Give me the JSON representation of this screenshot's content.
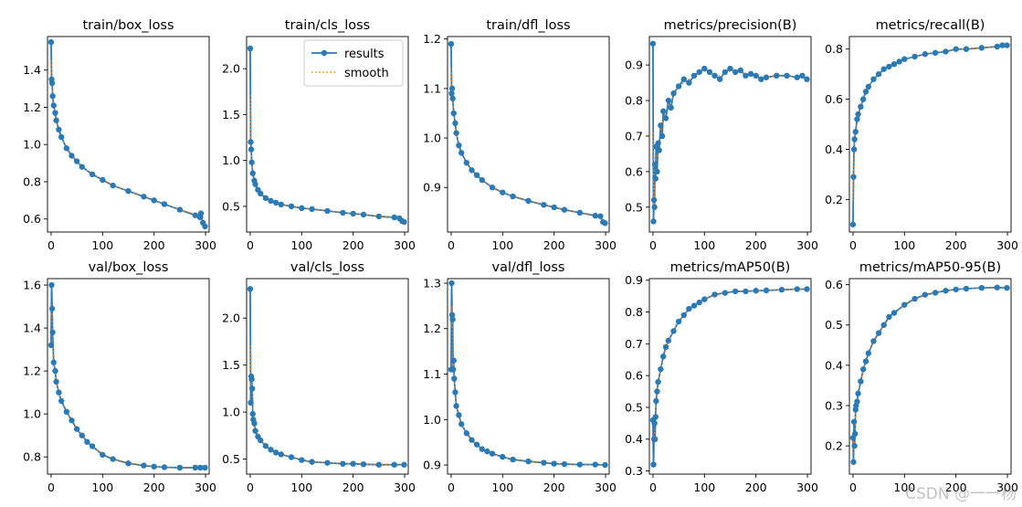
{
  "figure": {
    "watermark": "CSDN @一一杨"
  },
  "legend": {
    "results_label": "results",
    "smooth_label": "smooth"
  },
  "chart_data": [
    {
      "type": "line",
      "title": "train/box_loss",
      "xlim": [
        -7,
        307
      ],
      "ylim": [
        0.53,
        1.58
      ],
      "xticks": [
        0,
        100,
        200,
        300
      ],
      "yticks": [
        0.6,
        0.8,
        1.0,
        1.2,
        1.4
      ],
      "ytick_labels": [
        "0.6",
        "0.8",
        "1.0",
        "1.2",
        "1.4"
      ],
      "series": [
        {
          "name": "results",
          "x": [
            0,
            1,
            2,
            3,
            5,
            8,
            10,
            15,
            20,
            30,
            40,
            50,
            60,
            80,
            100,
            120,
            150,
            180,
            200,
            220,
            250,
            280,
            289,
            290,
            291,
            295,
            299
          ],
          "y": [
            1.55,
            1.35,
            1.33,
            1.26,
            1.21,
            1.17,
            1.13,
            1.08,
            1.04,
            0.98,
            0.94,
            0.91,
            0.88,
            0.84,
            0.81,
            0.78,
            0.75,
            0.72,
            0.7,
            0.68,
            0.65,
            0.62,
            0.61,
            0.61,
            0.63,
            0.58,
            0.56
          ]
        }
      ]
    },
    {
      "type": "line",
      "title": "train/cls_loss",
      "xlim": [
        -7,
        307
      ],
      "ylim": [
        0.22,
        2.35
      ],
      "xticks": [
        0,
        100,
        200,
        300
      ],
      "yticks": [
        0.5,
        1.0,
        1.5,
        2.0
      ],
      "ytick_labels": [
        "0.5",
        "1.0",
        "1.5",
        "2.0"
      ],
      "legend": "top-right",
      "series": [
        {
          "name": "results",
          "x": [
            0,
            1,
            2,
            3,
            5,
            8,
            10,
            15,
            20,
            30,
            40,
            50,
            60,
            80,
            100,
            120,
            150,
            180,
            200,
            220,
            250,
            280,
            290,
            295,
            299
          ],
          "y": [
            2.22,
            1.2,
            1.12,
            0.98,
            0.86,
            0.78,
            0.74,
            0.68,
            0.64,
            0.59,
            0.56,
            0.54,
            0.52,
            0.5,
            0.48,
            0.47,
            0.45,
            0.43,
            0.42,
            0.41,
            0.39,
            0.38,
            0.37,
            0.34,
            0.33
          ]
        }
      ]
    },
    {
      "type": "line",
      "title": "train/dfl_loss",
      "xlim": [
        -7,
        307
      ],
      "ylim": [
        0.81,
        1.205
      ],
      "xticks": [
        0,
        100,
        200,
        300
      ],
      "yticks": [
        0.9,
        1.0,
        1.1,
        1.2
      ],
      "ytick_labels": [
        "0.9",
        "1.0",
        "1.1",
        "1.2"
      ],
      "series": [
        {
          "name": "results",
          "x": [
            0,
            1,
            2,
            3,
            5,
            8,
            10,
            15,
            20,
            30,
            40,
            50,
            60,
            80,
            100,
            120,
            150,
            180,
            200,
            220,
            250,
            280,
            290,
            295,
            299
          ],
          "y": [
            1.19,
            1.09,
            1.1,
            1.08,
            1.05,
            1.03,
            1.01,
            0.985,
            0.97,
            0.95,
            0.935,
            0.925,
            0.915,
            0.9,
            0.89,
            0.882,
            0.873,
            0.865,
            0.86,
            0.855,
            0.849,
            0.843,
            0.842,
            0.83,
            0.828
          ]
        }
      ]
    },
    {
      "type": "line",
      "title": "metrics/precision(B)",
      "xlim": [
        -7,
        307
      ],
      "ylim": [
        0.43,
        0.98
      ],
      "xticks": [
        0,
        100,
        200,
        300
      ],
      "yticks": [
        0.5,
        0.6,
        0.7,
        0.8,
        0.9
      ],
      "ytick_labels": [
        "0.5",
        "0.6",
        "0.7",
        "0.8",
        "0.9"
      ],
      "series": [
        {
          "name": "results",
          "x": [
            0,
            1,
            2,
            3,
            4,
            5,
            6,
            8,
            10,
            12,
            15,
            18,
            20,
            25,
            30,
            35,
            40,
            50,
            60,
            70,
            80,
            90,
            100,
            110,
            120,
            130,
            140,
            150,
            160,
            170,
            180,
            190,
            200,
            210,
            220,
            240,
            260,
            280,
            290,
            299
          ],
          "y": [
            0.96,
            0.46,
            0.52,
            0.5,
            0.62,
            0.58,
            0.67,
            0.6,
            0.68,
            0.66,
            0.73,
            0.7,
            0.77,
            0.75,
            0.8,
            0.78,
            0.82,
            0.84,
            0.86,
            0.85,
            0.87,
            0.88,
            0.89,
            0.88,
            0.87,
            0.86,
            0.88,
            0.89,
            0.88,
            0.885,
            0.87,
            0.875,
            0.87,
            0.86,
            0.865,
            0.87,
            0.87,
            0.865,
            0.87,
            0.86
          ]
        }
      ]
    },
    {
      "type": "line",
      "title": "metrics/recall(B)",
      "xlim": [
        -7,
        307
      ],
      "ylim": [
        0.07,
        0.85
      ],
      "xticks": [
        0,
        100,
        200,
        300
      ],
      "yticks": [
        0.2,
        0.4,
        0.6,
        0.8
      ],
      "ytick_labels": [
        "0.2",
        "0.4",
        "0.6",
        "0.8"
      ],
      "series": [
        {
          "name": "results",
          "x": [
            0,
            1,
            2,
            3,
            5,
            8,
            10,
            15,
            20,
            25,
            30,
            40,
            50,
            60,
            70,
            80,
            90,
            100,
            120,
            140,
            160,
            180,
            200,
            220,
            250,
            280,
            290,
            299
          ],
          "y": [
            0.1,
            0.29,
            0.4,
            0.44,
            0.47,
            0.52,
            0.54,
            0.57,
            0.6,
            0.63,
            0.65,
            0.68,
            0.7,
            0.72,
            0.73,
            0.74,
            0.75,
            0.76,
            0.77,
            0.78,
            0.785,
            0.79,
            0.8,
            0.8,
            0.805,
            0.81,
            0.815,
            0.815
          ]
        }
      ]
    },
    {
      "type": "line",
      "title": "val/box_loss",
      "xlim": [
        -7,
        307
      ],
      "ylim": [
        0.72,
        1.63
      ],
      "xticks": [
        0,
        100,
        200,
        300
      ],
      "yticks": [
        0.8,
        1.0,
        1.2,
        1.4,
        1.6
      ],
      "ytick_labels": [
        "0.8",
        "1.0",
        "1.2",
        "1.4",
        "1.6"
      ],
      "series": [
        {
          "name": "results",
          "x": [
            0,
            1,
            2,
            3,
            5,
            8,
            10,
            15,
            20,
            30,
            40,
            50,
            60,
            70,
            80,
            100,
            120,
            150,
            180,
            200,
            220,
            250,
            280,
            290,
            299
          ],
          "y": [
            1.32,
            1.6,
            1.49,
            1.38,
            1.24,
            1.2,
            1.15,
            1.1,
            1.06,
            1.01,
            0.97,
            0.93,
            0.9,
            0.87,
            0.85,
            0.81,
            0.79,
            0.77,
            0.76,
            0.755,
            0.752,
            0.75,
            0.75,
            0.75,
            0.75
          ]
        }
      ]
    },
    {
      "type": "line",
      "title": "val/cls_loss",
      "xlim": [
        -7,
        307
      ],
      "ylim": [
        0.34,
        2.42
      ],
      "xticks": [
        0,
        100,
        200,
        300
      ],
      "yticks": [
        0.5,
        1.0,
        1.5,
        2.0
      ],
      "ytick_labels": [
        "0.5",
        "1.0",
        "1.5",
        "2.0"
      ],
      "series": [
        {
          "name": "results",
          "x": [
            0,
            1,
            2,
            3,
            4,
            5,
            6,
            8,
            10,
            15,
            20,
            30,
            40,
            50,
            60,
            80,
            100,
            120,
            150,
            180,
            200,
            220,
            250,
            280,
            299
          ],
          "y": [
            2.31,
            1.1,
            1.38,
            1.35,
            1.25,
            0.98,
            0.92,
            0.88,
            0.8,
            0.74,
            0.7,
            0.64,
            0.6,
            0.57,
            0.55,
            0.52,
            0.49,
            0.47,
            0.46,
            0.45,
            0.45,
            0.445,
            0.44,
            0.44,
            0.44
          ]
        }
      ]
    },
    {
      "type": "line",
      "title": "val/dfl_loss",
      "xlim": [
        -7,
        307
      ],
      "ylim": [
        0.88,
        1.31
      ],
      "xticks": [
        0,
        100,
        200,
        300
      ],
      "yticks": [
        0.9,
        1.0,
        1.1,
        1.2,
        1.3
      ],
      "ytick_labels": [
        "0.9",
        "1.0",
        "1.1",
        "1.2",
        "1.3"
      ],
      "series": [
        {
          "name": "results",
          "x": [
            0,
            1,
            2,
            3,
            4,
            5,
            6,
            8,
            10,
            15,
            20,
            30,
            40,
            50,
            60,
            70,
            80,
            100,
            120,
            150,
            180,
            200,
            220,
            250,
            280,
            299
          ],
          "y": [
            1.11,
            1.3,
            1.23,
            1.22,
            1.11,
            1.13,
            1.09,
            1.06,
            1.03,
            1.01,
            0.99,
            0.97,
            0.955,
            0.945,
            0.935,
            0.93,
            0.925,
            0.918,
            0.912,
            0.908,
            0.905,
            0.903,
            0.902,
            0.901,
            0.901,
            0.9
          ]
        }
      ]
    },
    {
      "type": "line",
      "title": "metrics/mAP50(B)",
      "xlim": [
        -7,
        307
      ],
      "ylim": [
        0.29,
        0.905
      ],
      "xticks": [
        0,
        100,
        200,
        300
      ],
      "yticks": [
        0.3,
        0.4,
        0.5,
        0.6,
        0.7,
        0.8,
        0.9
      ],
      "ytick_labels": [
        "0.3",
        "0.4",
        "0.5",
        "0.6",
        "0.7",
        "0.8",
        "0.9"
      ],
      "series": [
        {
          "name": "results",
          "x": [
            0,
            1,
            2,
            3,
            4,
            5,
            6,
            8,
            10,
            15,
            20,
            25,
            30,
            40,
            50,
            60,
            70,
            80,
            90,
            100,
            120,
            140,
            160,
            180,
            200,
            220,
            250,
            280,
            299
          ],
          "y": [
            0.46,
            0.32,
            0.4,
            0.45,
            0.4,
            0.47,
            0.52,
            0.55,
            0.58,
            0.62,
            0.66,
            0.69,
            0.71,
            0.74,
            0.77,
            0.79,
            0.81,
            0.82,
            0.83,
            0.84,
            0.855,
            0.86,
            0.865,
            0.865,
            0.867,
            0.868,
            0.87,
            0.872,
            0.872
          ]
        }
      ]
    },
    {
      "type": "line",
      "title": "metrics/mAP50-95(B)",
      "xlim": [
        -7,
        307
      ],
      "ylim": [
        0.13,
        0.615
      ],
      "xticks": [
        0,
        100,
        200,
        300
      ],
      "yticks": [
        0.2,
        0.3,
        0.4,
        0.5,
        0.6
      ],
      "ytick_labels": [
        "0.2",
        "0.3",
        "0.4",
        "0.5",
        "0.6"
      ],
      "series": [
        {
          "name": "results",
          "x": [
            0,
            1,
            2,
            3,
            4,
            5,
            6,
            8,
            10,
            15,
            20,
            25,
            30,
            40,
            50,
            60,
            70,
            80,
            100,
            120,
            140,
            160,
            180,
            200,
            220,
            250,
            280,
            299
          ],
          "y": [
            0.22,
            0.16,
            0.26,
            0.2,
            0.23,
            0.29,
            0.3,
            0.31,
            0.33,
            0.36,
            0.39,
            0.41,
            0.43,
            0.46,
            0.48,
            0.5,
            0.52,
            0.53,
            0.55,
            0.565,
            0.575,
            0.58,
            0.585,
            0.588,
            0.59,
            0.592,
            0.593,
            0.592
          ]
        }
      ]
    }
  ]
}
